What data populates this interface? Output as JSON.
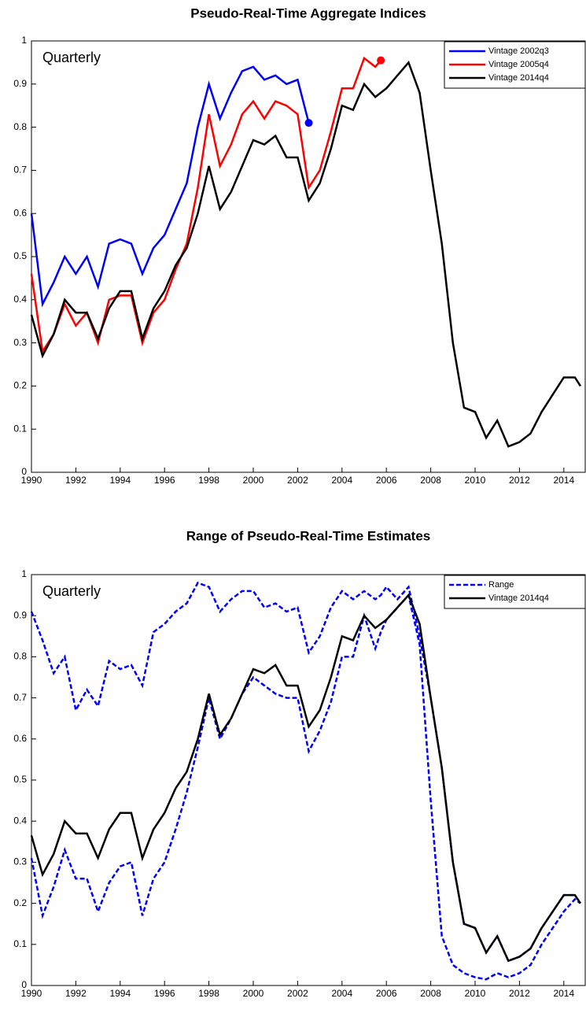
{
  "chart_data": [
    {
      "type": "line",
      "title": "Pseudo-Real-Time Aggregate Indices",
      "annotation": "Quarterly",
      "x": [
        1990,
        1990.5,
        1991,
        1991.5,
        1992,
        1992.5,
        1993,
        1993.5,
        1994,
        1994.5,
        1995,
        1995.5,
        1996,
        1996.5,
        1997,
        1997.5,
        1998,
        1998.5,
        1999,
        1999.5,
        2000,
        2000.5,
        2001,
        2001.5,
        2002,
        2002.5,
        2003,
        2003.5,
        2004,
        2004.5,
        2005,
        2005.5,
        2005.75,
        2006,
        2006.5,
        2007,
        2007.5,
        2008,
        2008.5,
        2009,
        2009.5,
        2010,
        2010.5,
        2011,
        2011.5,
        2012,
        2012.5,
        2013,
        2013.5,
        2014,
        2014.5,
        2014.75
      ],
      "xlim": [
        1990,
        2015
      ],
      "xticks": [
        1990,
        1992,
        1994,
        1996,
        1998,
        2000,
        2002,
        2004,
        2006,
        2008,
        2010,
        2012,
        2014
      ],
      "ylim": [
        0,
        1
      ],
      "yticks": [
        0,
        0.1,
        0.2,
        0.3,
        0.4,
        0.5,
        0.6,
        0.7,
        0.8,
        0.9,
        1
      ],
      "legend": "upper right",
      "series": [
        {
          "name": "Vintage 2002q3",
          "color": "#0000ff",
          "end_marker": true,
          "values": [
            0.6,
            0.39,
            0.44,
            0.5,
            0.46,
            0.5,
            0.43,
            0.53,
            0.54,
            0.53,
            0.46,
            0.52,
            0.55,
            0.61,
            0.67,
            0.8,
            0.9,
            0.82,
            0.88,
            0.93,
            0.94,
            0.91,
            0.92,
            0.9,
            0.91,
            0.81,
            null,
            null,
            null,
            null,
            null,
            null,
            null,
            null,
            null,
            null,
            null,
            null,
            null,
            null,
            null,
            null,
            null,
            null,
            null,
            null,
            null,
            null,
            null,
            null,
            null,
            null
          ]
        },
        {
          "name": "Vintage 2005q4",
          "color": "#ff0000",
          "end_marker": true,
          "values": [
            0.46,
            0.28,
            0.32,
            0.39,
            0.34,
            0.37,
            0.3,
            0.4,
            0.41,
            0.41,
            0.3,
            0.37,
            0.4,
            0.47,
            0.53,
            0.66,
            0.83,
            0.71,
            0.76,
            0.83,
            0.86,
            0.82,
            0.86,
            0.85,
            0.83,
            0.66,
            0.7,
            0.79,
            0.89,
            0.89,
            0.96,
            0.94,
            0.955,
            null,
            null,
            null,
            null,
            null,
            null,
            null,
            null,
            null,
            null,
            null,
            null,
            null,
            null,
            null,
            null,
            null,
            null,
            null
          ]
        },
        {
          "name": "Vintage 2014q4",
          "color": "#000000",
          "values": [
            0.365,
            0.27,
            0.32,
            0.4,
            0.37,
            0.37,
            0.31,
            0.38,
            0.42,
            0.42,
            0.31,
            0.38,
            0.42,
            0.48,
            0.52,
            0.6,
            0.71,
            0.61,
            0.65,
            0.71,
            0.77,
            0.76,
            0.78,
            0.73,
            0.73,
            0.63,
            0.67,
            0.75,
            0.85,
            0.84,
            0.9,
            0.87,
            0.88,
            0.89,
            0.92,
            0.95,
            0.88,
            0.7,
            0.53,
            0.3,
            0.15,
            0.14,
            0.08,
            0.12,
            0.06,
            0.07,
            0.09,
            0.14,
            0.18,
            0.22,
            0.22,
            0.2
          ]
        }
      ]
    },
    {
      "type": "line",
      "title": "Range of Pseudo-Real-Time Estimates",
      "annotation": "Quarterly",
      "x": [
        1990,
        1990.5,
        1991,
        1991.5,
        1992,
        1992.5,
        1993,
        1993.5,
        1994,
        1994.5,
        1995,
        1995.5,
        1996,
        1996.5,
        1997,
        1997.5,
        1998,
        1998.5,
        1999,
        1999.5,
        2000,
        2000.5,
        2001,
        2001.5,
        2002,
        2002.5,
        2003,
        2003.5,
        2004,
        2004.5,
        2005,
        2005.5,
        2005.75,
        2006,
        2006.5,
        2007,
        2007.5,
        2008,
        2008.5,
        2009,
        2009.5,
        2010,
        2010.5,
        2011,
        2011.5,
        2012,
        2012.5,
        2013,
        2013.5,
        2014,
        2014.5,
        2014.75
      ],
      "xlim": [
        1990,
        2015
      ],
      "xticks": [
        1990,
        1992,
        1994,
        1996,
        1998,
        2000,
        2002,
        2004,
        2006,
        2008,
        2010,
        2012,
        2014
      ],
      "ylim": [
        0,
        1
      ],
      "yticks": [
        0,
        0.1,
        0.2,
        0.3,
        0.4,
        0.5,
        0.6,
        0.7,
        0.8,
        0.9,
        1
      ],
      "legend": "upper right",
      "series": [
        {
          "name": "Range",
          "color": "#0000ff",
          "style": "dashed",
          "values": [
            0.91,
            0.84,
            0.76,
            0.8,
            0.67,
            0.72,
            0.68,
            0.79,
            0.77,
            0.78,
            0.73,
            0.86,
            0.88,
            0.91,
            0.93,
            0.98,
            0.97,
            0.91,
            0.94,
            0.96,
            0.96,
            0.92,
            0.93,
            0.91,
            0.92,
            0.81,
            0.85,
            0.92,
            0.96,
            0.94,
            0.96,
            0.94,
            0.95,
            0.97,
            0.94,
            0.97,
            0.85,
            0.7,
            0.53,
            0.3,
            0.15,
            0.14,
            0.08,
            0.12,
            0.06,
            0.07,
            0.09,
            0.14,
            0.18,
            0.22,
            0.22,
            0.2
          ],
          "lower": [
            0.31,
            0.17,
            0.24,
            0.33,
            0.26,
            0.26,
            0.18,
            0.25,
            0.29,
            0.3,
            0.17,
            0.26,
            0.3,
            0.38,
            0.47,
            0.58,
            0.7,
            0.6,
            0.65,
            0.71,
            0.75,
            0.73,
            0.71,
            0.7,
            0.7,
            0.57,
            0.62,
            0.69,
            0.8,
            0.8,
            0.9,
            0.82,
            0.86,
            0.89,
            0.92,
            0.95,
            0.83,
            0.45,
            0.12,
            0.05,
            0.03,
            0.02,
            0.015,
            0.03,
            0.02,
            0.03,
            0.05,
            0.1,
            0.14,
            0.18,
            0.21,
            0.2
          ]
        },
        {
          "name": "Vintage 2014q4",
          "color": "#000000",
          "values": [
            0.365,
            0.27,
            0.32,
            0.4,
            0.37,
            0.37,
            0.31,
            0.38,
            0.42,
            0.42,
            0.31,
            0.38,
            0.42,
            0.48,
            0.52,
            0.6,
            0.71,
            0.61,
            0.65,
            0.71,
            0.77,
            0.76,
            0.78,
            0.73,
            0.73,
            0.63,
            0.67,
            0.75,
            0.85,
            0.84,
            0.9,
            0.87,
            0.88,
            0.89,
            0.92,
            0.95,
            0.88,
            0.7,
            0.53,
            0.3,
            0.15,
            0.14,
            0.08,
            0.12,
            0.06,
            0.07,
            0.09,
            0.14,
            0.18,
            0.22,
            0.22,
            0.2
          ]
        }
      ]
    }
  ]
}
